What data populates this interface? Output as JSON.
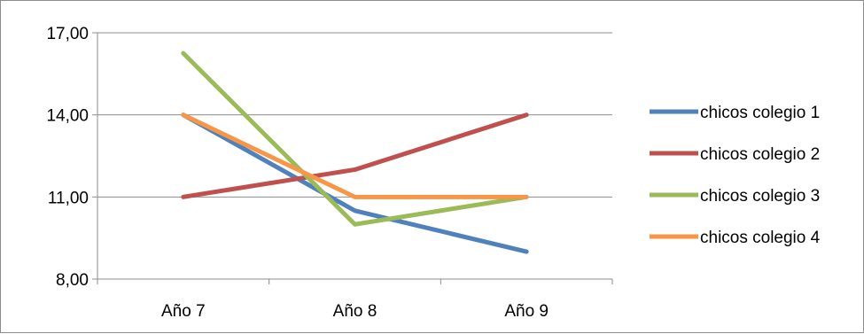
{
  "chart_data": {
    "type": "line",
    "categories": [
      "Año 7",
      "Año 8",
      "Año 9"
    ],
    "series": [
      {
        "name": "chicos colegio 1",
        "values": [
          14,
          10.5,
          9
        ],
        "color": "#4f81bd"
      },
      {
        "name": "chicos colegio 2",
        "values": [
          11,
          12,
          14
        ],
        "color": "#c0504d"
      },
      {
        "name": "chicos colegio 3",
        "values": [
          16.25,
          10,
          11
        ],
        "color": "#9bbb59"
      },
      {
        "name": "chicos colegio 4",
        "values": [
          14,
          11,
          11
        ],
        "color": "#f79646"
      }
    ],
    "yticks": [
      "8,00",
      "11,00",
      "14,00",
      "17,00"
    ],
    "ytick_values": [
      8,
      11,
      14,
      17
    ],
    "ylim": [
      8,
      17
    ],
    "grid": true,
    "legend": "right"
  }
}
